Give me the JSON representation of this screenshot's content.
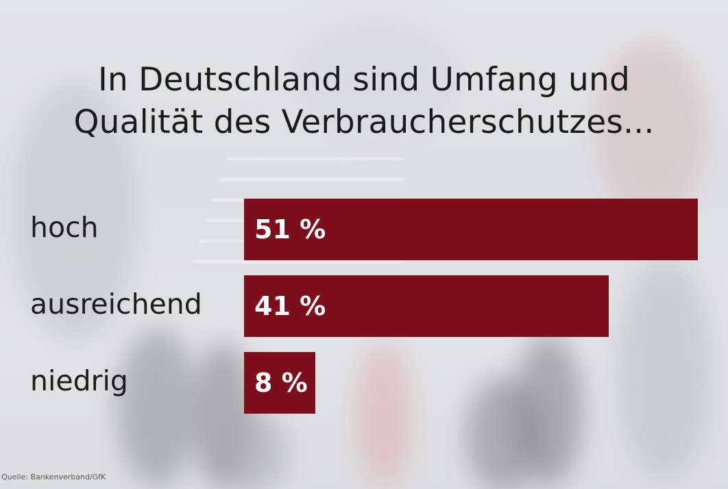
{
  "chart_data": {
    "type": "bar",
    "orientation": "horizontal",
    "title": "In Deutschland sind Umfang und Qualität des Verbraucherschutzes...",
    "title_lines": [
      "In Deutschland sind Umfang und",
      "Qualität des Verbraucherschutzes..."
    ],
    "categories": [
      "hoch",
      "ausreichend",
      "niedrig"
    ],
    "values": [
      51,
      41,
      8
    ],
    "value_labels": [
      "51 %",
      "41 %",
      "8 %"
    ],
    "xlim": [
      0,
      51
    ],
    "bar_color": "#7d0f1c",
    "grid": false,
    "legend": "none"
  },
  "source": "Quelle: Bankenverband/GfK"
}
